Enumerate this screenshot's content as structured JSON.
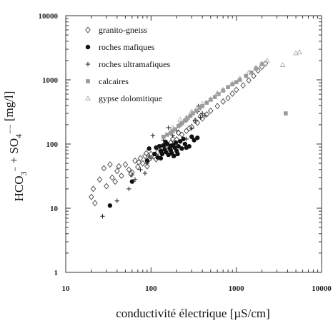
{
  "chart_data": {
    "type": "scatter",
    "x_scale": "log",
    "y_scale": "log",
    "xlim": [
      10,
      10000
    ],
    "ylim": [
      1,
      10000
    ],
    "xlabel": "conductivité électrique [µS/cm]",
    "ylabel": "HCO3- + SO4-- [mg/l]",
    "x_ticks": [
      10,
      100,
      1000,
      10000
    ],
    "y_ticks": [
      1,
      10,
      100,
      1000,
      10000
    ],
    "x_tick_labels": [
      "10",
      "100",
      "1000",
      "10000"
    ],
    "y_tick_labels": [
      "1",
      "10",
      "100",
      "1000",
      "10000"
    ],
    "grid": false,
    "legend_position": "top-left",
    "series": [
      {
        "name": "granito-gneiss",
        "marker": "diamond",
        "color": "#444444",
        "points": [
          [
            20,
            15
          ],
          [
            21,
            20
          ],
          [
            22,
            12
          ],
          [
            25,
            28
          ],
          [
            28,
            42
          ],
          [
            30,
            22
          ],
          [
            33,
            48
          ],
          [
            35,
            30
          ],
          [
            38,
            26
          ],
          [
            40,
            38
          ],
          [
            45,
            32
          ],
          [
            50,
            48
          ],
          [
            55,
            40
          ],
          [
            60,
            36
          ],
          [
            65,
            55
          ],
          [
            70,
            44
          ],
          [
            75,
            60
          ],
          [
            80,
            50
          ],
          [
            85,
            65
          ],
          [
            90,
            45
          ],
          [
            95,
            58
          ],
          [
            100,
            70
          ],
          [
            110,
            62
          ],
          [
            120,
            75
          ],
          [
            130,
            90
          ],
          [
            150,
            98
          ],
          [
            170,
            105
          ],
          [
            200,
            118
          ],
          [
            230,
            140
          ],
          [
            260,
            160
          ],
          [
            300,
            185
          ],
          [
            350,
            215
          ],
          [
            400,
            250
          ],
          [
            450,
            290
          ],
          [
            500,
            330
          ],
          [
            600,
            390
          ],
          [
            700,
            460
          ],
          [
            800,
            520
          ],
          [
            900,
            610
          ],
          [
            1000,
            700
          ],
          [
            1200,
            820
          ],
          [
            1400,
            980
          ],
          [
            1600,
            1150
          ],
          [
            1800,
            1400
          ],
          [
            2000,
            1600
          ],
          [
            2200,
            1800
          ],
          [
            42,
            45
          ],
          [
            58,
            34
          ],
          [
            72,
            52
          ],
          [
            88,
            72
          ],
          [
            115,
            58
          ],
          [
            140,
            85
          ],
          [
            180,
            120
          ],
          [
            210,
            150
          ],
          [
            280,
            175
          ],
          [
            330,
            230
          ],
          [
            380,
            270
          ]
        ]
      },
      {
        "name": "roches mafiques",
        "marker": "circle",
        "color": "#111111",
        "points": [
          [
            33,
            11
          ],
          [
            60,
            26
          ],
          [
            90,
            55
          ],
          [
            95,
            85
          ],
          [
            110,
            70
          ],
          [
            115,
            88
          ],
          [
            120,
            62
          ],
          [
            125,
            92
          ],
          [
            130,
            78
          ],
          [
            135,
            70
          ],
          [
            140,
            95
          ],
          [
            145,
            82
          ],
          [
            150,
            75
          ],
          [
            155,
            100
          ],
          [
            160,
            68
          ],
          [
            165,
            86
          ],
          [
            170,
            80
          ],
          [
            175,
            72
          ],
          [
            180,
            95
          ],
          [
            185,
            65
          ],
          [
            190,
            88
          ],
          [
            195,
            105
          ],
          [
            200,
            78
          ],
          [
            210,
            92
          ],
          [
            220,
            110
          ],
          [
            230,
            85
          ],
          [
            240,
            120
          ],
          [
            250,
            100
          ],
          [
            280,
            92
          ],
          [
            300,
            130
          ],
          [
            320,
            115
          ],
          [
            350,
            125
          ],
          [
            130,
            60
          ],
          [
            148,
            108
          ],
          [
            172,
            94
          ],
          [
            205,
            70
          ],
          [
            260,
            88
          ]
        ]
      },
      {
        "name": "roches ultramafiques",
        "marker": "plus",
        "color": "#222222",
        "points": [
          [
            27,
            7.5
          ],
          [
            40,
            13
          ],
          [
            55,
            20
          ],
          [
            60,
            33
          ],
          [
            65,
            28
          ],
          [
            75,
            40
          ],
          [
            85,
            35
          ],
          [
            90,
            50
          ],
          [
            95,
            65
          ],
          [
            100,
            60
          ],
          [
            105,
            135
          ],
          [
            120,
            90
          ],
          [
            140,
            115
          ],
          [
            160,
            180
          ],
          [
            180,
            135
          ],
          [
            200,
            160
          ],
          [
            230,
            210
          ],
          [
            260,
            120
          ],
          [
            300,
            175
          ],
          [
            330,
            230
          ],
          [
            350,
            320
          ],
          [
            360,
            390
          ],
          [
            380,
            260
          ],
          [
            400,
            300
          ],
          [
            430,
            280
          ]
        ]
      },
      {
        "name": "calcaires",
        "marker": "square",
        "color": "#999999",
        "points": [
          [
            140,
            130
          ],
          [
            155,
            140
          ],
          [
            170,
            150
          ],
          [
            190,
            170
          ],
          [
            210,
            190
          ],
          [
            230,
            210
          ],
          [
            250,
            230
          ],
          [
            270,
            255
          ],
          [
            290,
            275
          ],
          [
            310,
            300
          ],
          [
            340,
            330
          ],
          [
            370,
            360
          ],
          [
            400,
            390
          ],
          [
            450,
            440
          ],
          [
            500,
            490
          ],
          [
            560,
            540
          ],
          [
            620,
            600
          ],
          [
            700,
            680
          ],
          [
            800,
            770
          ],
          [
            900,
            850
          ],
          [
            1000,
            920
          ],
          [
            1100,
            1000
          ],
          [
            1300,
            1150
          ],
          [
            1500,
            1300
          ],
          [
            1700,
            1500
          ],
          [
            2000,
            1750
          ],
          [
            3800,
            300
          ],
          [
            180,
            160
          ],
          [
            220,
            200
          ],
          [
            260,
            240
          ]
        ]
      },
      {
        "name": "gypse dolomitique",
        "marker": "triangle",
        "color": "#aaaaaa",
        "points": [
          [
            180,
            180
          ],
          [
            220,
            240
          ],
          [
            260,
            260
          ],
          [
            300,
            320
          ],
          [
            350,
            370
          ],
          [
            400,
            420
          ],
          [
            500,
            500
          ],
          [
            600,
            620
          ],
          [
            700,
            700
          ],
          [
            900,
            880
          ],
          [
            1100,
            1050
          ],
          [
            1400,
            1300
          ],
          [
            1700,
            1550
          ],
          [
            2000,
            1800
          ],
          [
            2300,
            2000
          ],
          [
            3500,
            1700
          ],
          [
            5000,
            2600
          ],
          [
            5500,
            2700
          ]
        ]
      }
    ]
  }
}
